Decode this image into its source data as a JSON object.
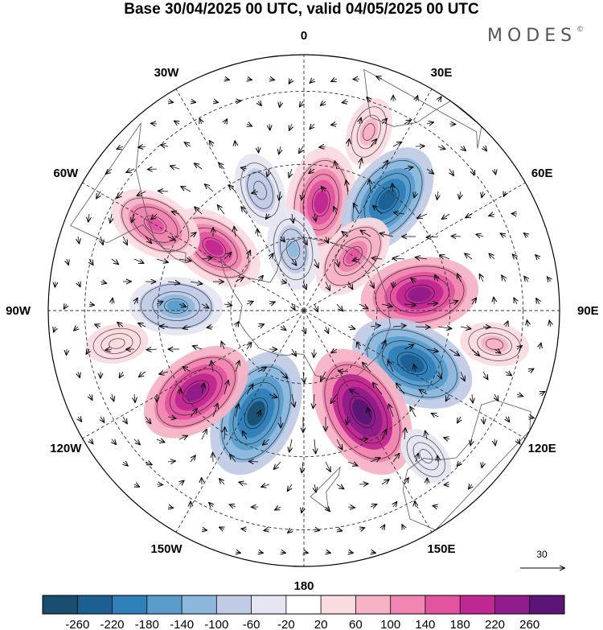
{
  "title": "Base 30/04/2025 00 UTC, valid 04/05/2025 00 UTC",
  "brand": "MODES",
  "brand_mark": "©",
  "longitude_labels": [
    {
      "text": "0",
      "lon": 0
    },
    {
      "text": "30E",
      "lon": 30
    },
    {
      "text": "60E",
      "lon": 60
    },
    {
      "text": "90E",
      "lon": 90
    },
    {
      "text": "120E",
      "lon": 120
    },
    {
      "text": "150E",
      "lon": 150
    },
    {
      "text": "180",
      "lon": 180
    },
    {
      "text": "150W",
      "lon": -150
    },
    {
      "text": "120W",
      "lon": -120
    },
    {
      "text": "90W",
      "lon": -90
    },
    {
      "text": "60W",
      "lon": -60
    },
    {
      "text": "30W",
      "lon": -30
    }
  ],
  "reference_vector": {
    "label": "30",
    "value": 30
  },
  "colorbar": {
    "colors": [
      "#1a4e6e",
      "#1c5f91",
      "#2f7fb8",
      "#5a9dcc",
      "#8cb7dc",
      "#c1cbe6",
      "#e6e6f2",
      "#ffffff",
      "#fadbe0",
      "#f6b3c5",
      "#ef85b0",
      "#e253a0",
      "#c02891",
      "#901b8a",
      "#5a1576"
    ],
    "labels": [
      "-260",
      "-220",
      "-180",
      "-140",
      "-100",
      "-60",
      "-20",
      "20",
      "60",
      "100",
      "140",
      "180",
      "220",
      "260"
    ]
  },
  "anomaly_centers": [
    {
      "sign": "positive",
      "strength": 210,
      "lat": -60,
      "lon": 9
    },
    {
      "sign": "negative",
      "strength": 230,
      "lat": -52,
      "lon": 37
    },
    {
      "sign": "positive",
      "strength": 140,
      "lat": -70,
      "lon": 42
    },
    {
      "sign": "positive",
      "strength": 230,
      "lat": -58,
      "lon": 82
    },
    {
      "sign": "negative",
      "strength": 260,
      "lat": -57,
      "lon": 116
    },
    {
      "sign": "positive",
      "strength": 290,
      "lat": -58,
      "lon": 150
    },
    {
      "sign": "negative",
      "strength": 270,
      "lat": -59,
      "lon": -155
    },
    {
      "sign": "positive",
      "strength": 230,
      "lat": -53,
      "lon": -127
    },
    {
      "sign": "negative",
      "strength": 150,
      "lat": -55,
      "lon": -88
    },
    {
      "sign": "positive",
      "strength": 180,
      "lat": -60,
      "lon": -55
    },
    {
      "sign": "positive",
      "strength": 160,
      "lat": -43,
      "lon": -60
    },
    {
      "sign": "negative",
      "strength": 110,
      "lat": -73,
      "lon": -10
    },
    {
      "sign": "negative",
      "strength": 90,
      "lat": -55,
      "lon": -20
    },
    {
      "sign": "positive",
      "strength": 70,
      "lat": -38,
      "lon": 20
    },
    {
      "sign": "positive",
      "strength": 70,
      "lat": -37,
      "lon": 100
    },
    {
      "sign": "negative",
      "strength": 50,
      "lat": -38,
      "lon": 140
    },
    {
      "sign": "positive",
      "strength": 50,
      "lat": -38,
      "lon": -100
    }
  ]
}
